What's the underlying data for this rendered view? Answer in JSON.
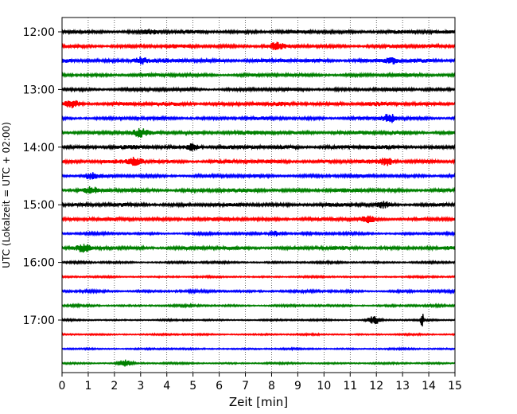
{
  "chart_data": {
    "type": "line",
    "title": "",
    "xlabel": "Zeit  [min]",
    "ylabel": "UTC (Lokalzeit = UTC + 02:00)",
    "xlim": [
      0,
      15
    ],
    "x_ticks": [
      "0",
      "1",
      "2",
      "3",
      "4",
      "5",
      "6",
      "7",
      "8",
      "9",
      "10",
      "11",
      "12",
      "13",
      "14",
      "15"
    ],
    "y_ticks": [
      {
        "label": "12:00",
        "trace": 0
      },
      {
        "label": "13:00",
        "trace": 4
      },
      {
        "label": "14:00",
        "trace": 8
      },
      {
        "label": "15:00",
        "trace": 12
      },
      {
        "label": "16:00",
        "trace": 16
      },
      {
        "label": "17:00",
        "trace": 20
      }
    ],
    "grid": "vertical dotted",
    "trace_interval_minutes": 15,
    "color_cycle": [
      "#000000",
      "#ff0000",
      "#0000ff",
      "#008000"
    ],
    "traces": [
      {
        "start": "12:00",
        "color": "#000000",
        "amplitude": 0.9,
        "events": [
          {
            "t": 3.4,
            "a": 1.0
          }
        ]
      },
      {
        "start": "12:15",
        "color": "#ff0000",
        "amplitude": 0.9,
        "events": [
          {
            "t": 8.2,
            "a": 1.4
          }
        ]
      },
      {
        "start": "12:30",
        "color": "#0000ff",
        "amplitude": 1.0,
        "events": [
          {
            "t": 3.0,
            "a": 1.6
          },
          {
            "t": 12.6,
            "a": 1.4
          }
        ]
      },
      {
        "start": "12:45",
        "color": "#008000",
        "amplitude": 0.8,
        "events": []
      },
      {
        "start": "13:00",
        "color": "#000000",
        "amplitude": 0.8,
        "events": []
      },
      {
        "start": "13:15",
        "color": "#ff0000",
        "amplitude": 1.0,
        "events": [
          {
            "t": 0.4,
            "a": 1.4
          }
        ]
      },
      {
        "start": "13:30",
        "color": "#0000ff",
        "amplitude": 0.8,
        "events": [
          {
            "t": 12.5,
            "a": 2.0
          }
        ]
      },
      {
        "start": "13:45",
        "color": "#008000",
        "amplitude": 1.0,
        "events": [
          {
            "t": 3.0,
            "a": 1.4
          }
        ]
      },
      {
        "start": "14:00",
        "color": "#000000",
        "amplitude": 1.0,
        "events": [
          {
            "t": 5.0,
            "a": 1.3
          }
        ]
      },
      {
        "start": "14:15",
        "color": "#ff0000",
        "amplitude": 1.0,
        "events": [
          {
            "t": 2.8,
            "a": 1.6
          },
          {
            "t": 12.4,
            "a": 1.6
          }
        ]
      },
      {
        "start": "14:30",
        "color": "#0000ff",
        "amplitude": 0.8,
        "events": [
          {
            "t": 1.1,
            "a": 1.3
          }
        ]
      },
      {
        "start": "14:45",
        "color": "#008000",
        "amplitude": 0.9,
        "events": [
          {
            "t": 1.1,
            "a": 1.3
          }
        ]
      },
      {
        "start": "15:00",
        "color": "#000000",
        "amplitude": 0.9,
        "events": [
          {
            "t": 12.3,
            "a": 1.2
          }
        ]
      },
      {
        "start": "15:15",
        "color": "#ff0000",
        "amplitude": 0.9,
        "events": [
          {
            "t": 11.7,
            "a": 1.2
          }
        ]
      },
      {
        "start": "15:30",
        "color": "#0000ff",
        "amplitude": 0.6,
        "events": [
          {
            "t": 8.2,
            "a": 1.3
          }
        ]
      },
      {
        "start": "15:45",
        "color": "#008000",
        "amplitude": 0.9,
        "events": [
          {
            "t": 0.8,
            "a": 1.4
          }
        ]
      },
      {
        "start": "16:00",
        "color": "#000000",
        "amplitude": 0.5,
        "events": []
      },
      {
        "start": "16:15",
        "color": "#ff0000",
        "amplitude": 0.4,
        "events": []
      },
      {
        "start": "16:30",
        "color": "#0000ff",
        "amplitude": 0.6,
        "events": []
      },
      {
        "start": "16:45",
        "color": "#008000",
        "amplitude": 0.5,
        "events": []
      },
      {
        "start": "17:00",
        "color": "#000000",
        "amplitude": 0.4,
        "events": [
          {
            "t": 11.9,
            "a": 2.0
          },
          {
            "t": 13.75,
            "a": 5.0
          }
        ]
      },
      {
        "start": "17:15",
        "color": "#ff0000",
        "amplitude": 0.4,
        "events": []
      },
      {
        "start": "17:30",
        "color": "#0000ff",
        "amplitude": 0.4,
        "events": []
      },
      {
        "start": "17:45",
        "color": "#008000",
        "amplitude": 0.4,
        "events": [
          {
            "t": 2.4,
            "a": 1.6
          }
        ]
      }
    ]
  }
}
